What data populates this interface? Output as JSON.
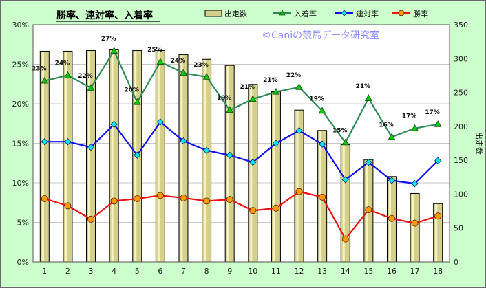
{
  "chart_data": {
    "type": "bar+line",
    "title": "勝率、連対率、入着率",
    "watermark": "©Caniの競馬データ研究室",
    "categories": [
      "1",
      "2",
      "3",
      "4",
      "5",
      "6",
      "7",
      "8",
      "9",
      "10",
      "11",
      "12",
      "13",
      "14",
      "15",
      "16",
      "17",
      "18"
    ],
    "bar_series": {
      "name": "出走数",
      "axis": "right",
      "color": "#d4d08a",
      "values": [
        311,
        311,
        312,
        313,
        312,
        312,
        306,
        299,
        290,
        262,
        251,
        224,
        194,
        173,
        151,
        126,
        101,
        86
      ]
    },
    "series": [
      {
        "name": "入着率",
        "color": "#2e8b57",
        "marker": "triangle",
        "values": [
          22.9,
          23.6,
          22.0,
          26.7,
          20.2,
          25.3,
          23.9,
          23.4,
          19.2,
          20.6,
          21.5,
          22.1,
          19.1,
          15.1,
          20.7,
          15.8,
          16.9,
          17.4
        ],
        "labels": [
          "23%",
          "24%",
          "22%",
          "27%",
          "20%",
          "25%",
          "24%",
          "23%",
          "19%",
          "21%",
          "21%",
          "22%",
          "19%",
          "15%",
          "21%",
          "16%",
          "17%",
          "17%"
        ]
      },
      {
        "name": "連対率",
        "color": "#1010ee",
        "marker": "diamond",
        "values": [
          15.2,
          15.2,
          14.5,
          17.4,
          13.5,
          17.7,
          15.3,
          14.1,
          13.5,
          12.6,
          15.0,
          16.6,
          14.9,
          10.4,
          12.6,
          10.3,
          9.9,
          12.8
        ]
      },
      {
        "name": "勝率",
        "color": "#ee1010",
        "marker": "circle",
        "values": [
          8.0,
          7.1,
          5.4,
          7.7,
          8.0,
          8.4,
          8.1,
          7.7,
          7.9,
          6.5,
          6.8,
          8.9,
          8.2,
          2.9,
          6.6,
          5.5,
          4.9,
          5.8
        ]
      }
    ],
    "y_left": {
      "min": 0,
      "max": 30,
      "step": 5,
      "ticks": [
        "0%",
        "5%",
        "10%",
        "15%",
        "20%",
        "25%",
        "30%"
      ]
    },
    "y_right": {
      "min": 0,
      "max": 350,
      "step": 50,
      "ticks": [
        "0",
        "50",
        "100",
        "150",
        "200",
        "250",
        "300",
        "350"
      ],
      "label": "出走数"
    },
    "legend": {
      "position": "top-center",
      "entries": [
        "出走数",
        "入着率",
        "連対率",
        "勝率"
      ]
    },
    "grid": true
  }
}
